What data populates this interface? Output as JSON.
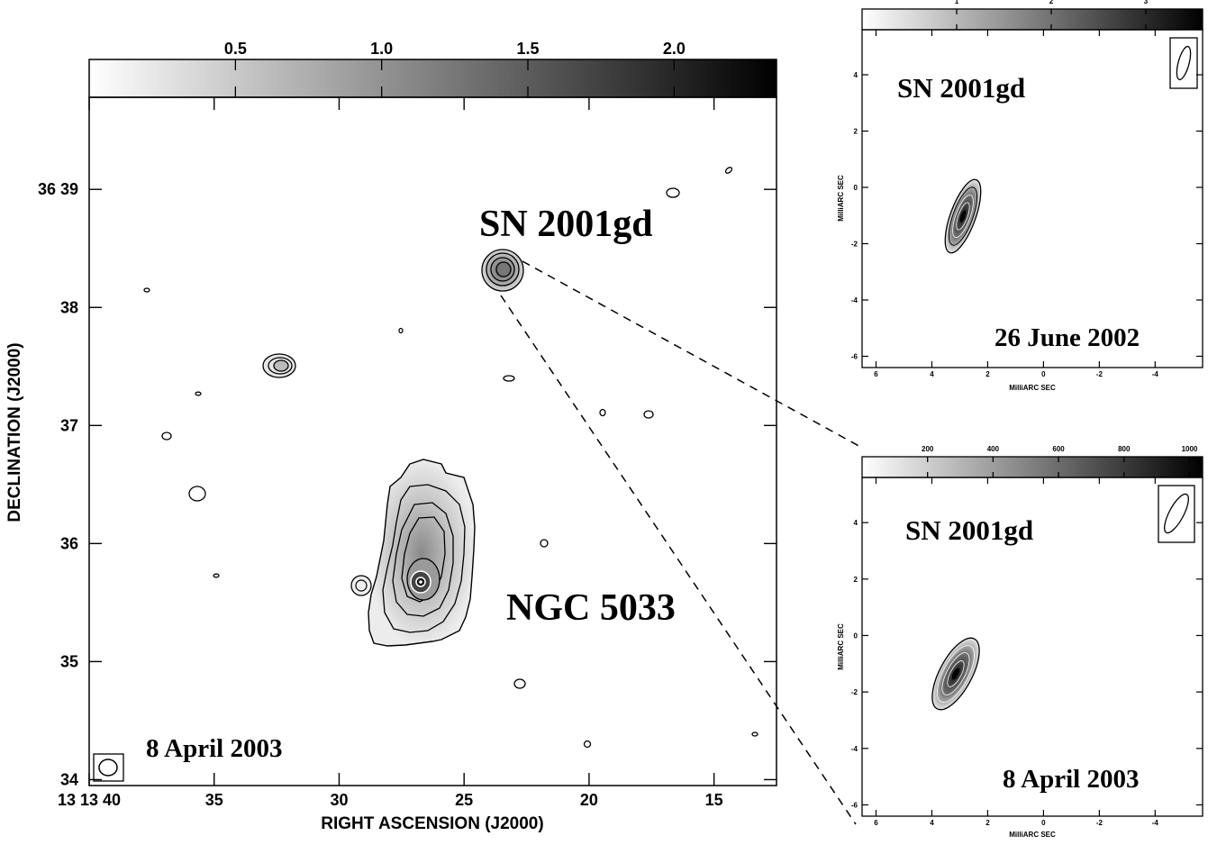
{
  "chart_data": [
    {
      "type": "heatmap",
      "panel": "main",
      "colorbar": {
        "ticks": [
          0.5,
          1.0,
          1.5,
          2.0
        ],
        "range": [
          0,
          2.35
        ],
        "tick_labels": [
          "0.5",
          "1.0",
          "1.5",
          "2.0"
        ]
      },
      "xlabel": "RIGHT ASCENSION (J2000)",
      "ylabel": "DECLINATION (J2000)",
      "x_ticks": [
        "13 13 40",
        "35",
        "30",
        "25",
        "20",
        "15"
      ],
      "y_ticks": [
        "36 39",
        "38",
        "37",
        "36",
        "35",
        "34"
      ],
      "xlim": [
        40.0,
        12.5
      ],
      "ylim": [
        33.95,
        39.78
      ],
      "annotations": [
        {
          "text": "SN 2001gd",
          "ra": 20.0,
          "dec": 38.7
        },
        {
          "text": "NGC 5033",
          "ra": 18.3,
          "dec": 35.4
        },
        {
          "text": "8 April 2003",
          "ra": 34.0,
          "dec": 34.25
        }
      ],
      "sources": [
        {
          "name": "SN 2001gd",
          "ra": 23.8,
          "dec": 38.3
        },
        {
          "name": "NGC 5033 nucleus",
          "ra": 27.4,
          "dec": 35.62
        },
        {
          "name": "compact source",
          "ra": 33.3,
          "dec": 37.48
        }
      ]
    },
    {
      "type": "heatmap",
      "panel": "inset-top",
      "colorbar": {
        "ticks": [
          1,
          2,
          3
        ],
        "tick_labels": [
          "1",
          "2",
          "3"
        ],
        "range": [
          0,
          3.6
        ]
      },
      "xlabel": "MilliARC SEC",
      "ylabel": "MilliARC SEC",
      "x_ticks": [
        "6",
        "4",
        "2",
        "0",
        "-2",
        "-4"
      ],
      "y_ticks": [
        "4",
        "2",
        "0",
        "-2",
        "-4",
        "-6"
      ],
      "xlim": [
        6.5,
        -5.7
      ],
      "ylim": [
        -6.4,
        5.6
      ],
      "annotations": [
        {
          "text": "SN 2001gd"
        },
        {
          "text": "26 June 2002"
        }
      ],
      "source_peak": {
        "x": 2.75,
        "y": -0.95
      }
    },
    {
      "type": "heatmap",
      "panel": "inset-bottom",
      "colorbar": {
        "ticks": [
          200,
          400,
          600,
          800,
          1000
        ],
        "tick_labels": [
          "200",
          "400",
          "600",
          "800",
          "1000"
        ],
        "range": [
          0,
          1040
        ]
      },
      "xlabel": "MilliARC SEC",
      "ylabel": "MilliARC SEC",
      "x_ticks": [
        "6",
        "4",
        "2",
        "0",
        "-2",
        "-4"
      ],
      "y_ticks": [
        "4",
        "2",
        "0",
        "-2",
        "-4",
        "-6"
      ],
      "xlim": [
        6.5,
        -5.7
      ],
      "ylim": [
        -6.4,
        5.6
      ],
      "annotations": [
        {
          "text": "SN 2001gd"
        },
        {
          "text": "8 April 2003"
        }
      ],
      "source_peak": {
        "x": 2.85,
        "y": -1.4
      }
    }
  ]
}
